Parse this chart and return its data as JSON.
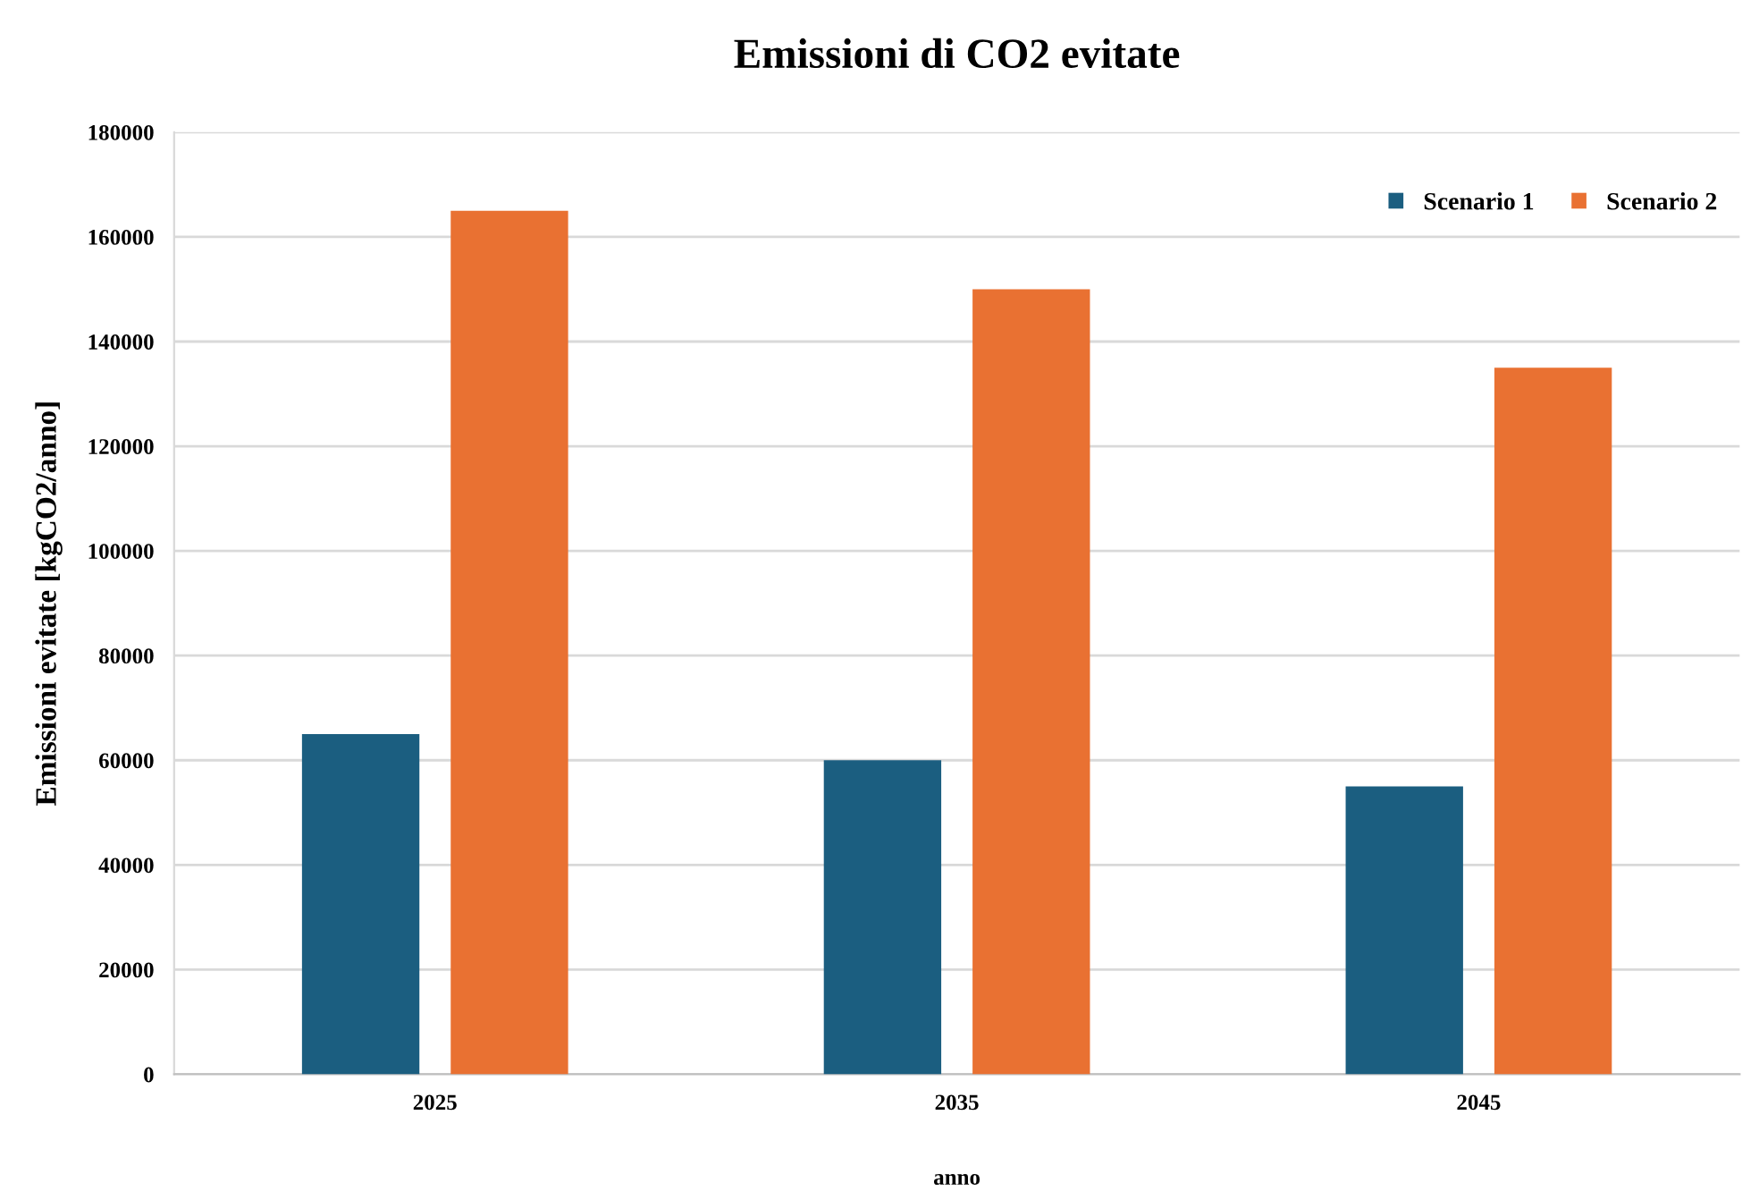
{
  "chart_data": {
    "type": "bar",
    "title": "Emissioni di CO2 evitate",
    "xlabel": "anno",
    "ylabel": "Emissioni evitate [kgCO2/anno]",
    "categories": [
      "2025",
      "2035",
      "2045"
    ],
    "series": [
      {
        "name": "Scenario 1",
        "color": "#1b5e80",
        "values": [
          65000,
          60000,
          55000
        ]
      },
      {
        "name": "Scenario 2",
        "color": "#e97132",
        "values": [
          165000,
          150000,
          135000
        ]
      }
    ],
    "ylim": [
      0,
      180000
    ],
    "yticks": [
      0,
      20000,
      40000,
      60000,
      80000,
      100000,
      120000,
      140000,
      160000,
      180000
    ],
    "grid": "y",
    "legend": "top right"
  }
}
